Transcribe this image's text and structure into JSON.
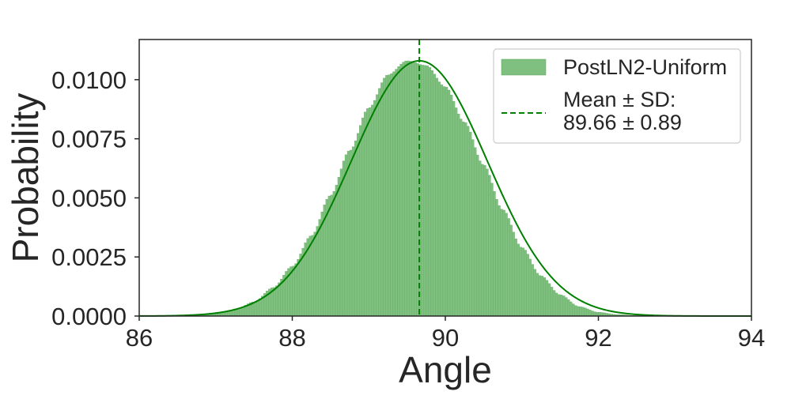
{
  "chart_data": {
    "type": "bar",
    "subtype": "histogram-with-kde",
    "title": "",
    "xlabel": "Angle",
    "ylabel": "Probability",
    "xlim": [
      86,
      94
    ],
    "ylim": [
      0,
      0.0117
    ],
    "xticks": [
      86,
      88,
      90,
      92,
      94
    ],
    "xtick_labels": [
      "86",
      "88",
      "90",
      "92",
      "94"
    ],
    "yticks": [
      0,
      0.0025,
      0.005,
      0.0075,
      0.01
    ],
    "ytick_labels": [
      "0.0000",
      "0.0025",
      "0.0050",
      "0.0075",
      "0.0100"
    ],
    "grid": false,
    "legend_position": "top-right",
    "series": [
      {
        "name": "PostLN2-Uniform",
        "kind": "histogram",
        "color": "#7fbf7f",
        "edge_color": "#5aa85a",
        "bin_centers": [
          86.75,
          87.0,
          87.25,
          87.5,
          87.75,
          88.0,
          88.25,
          88.5,
          88.75,
          89.0,
          89.25,
          89.5,
          89.75,
          90.0,
          90.25,
          90.5,
          90.75,
          91.0,
          91.25,
          91.5,
          91.75,
          92.0,
          92.25,
          92.5
        ],
        "values": [
          3e-05,
          0.0001,
          0.00025,
          0.0006,
          0.0012,
          0.0021,
          0.0034,
          0.0051,
          0.007,
          0.0088,
          0.0102,
          0.0108,
          0.0106,
          0.0097,
          0.0082,
          0.0064,
          0.0045,
          0.0029,
          0.0017,
          0.0009,
          0.0004,
          0.00016,
          6e-05,
          2e-05
        ]
      },
      {
        "name": "",
        "kind": "kde-line",
        "color": "#008000"
      }
    ],
    "mean": 89.66,
    "sd": 0.89,
    "mean_line": {
      "x": 89.66,
      "color": "#008000",
      "style": "dashed",
      "legend_label_line1": "Mean ± SD:",
      "legend_label_line2": "89.66 ± 0.89"
    }
  }
}
